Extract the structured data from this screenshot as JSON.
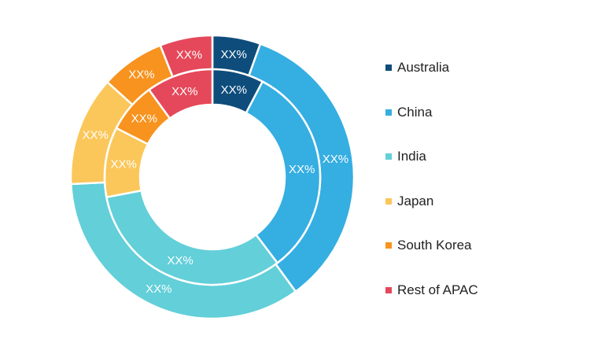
{
  "chart_data": {
    "type": "donut",
    "categories": [
      "Australia",
      "China",
      "India",
      "Japan",
      "South Korea",
      "Rest of APAC"
    ],
    "colors": [
      "#0e4d7b",
      "#35aee2",
      "#62cfd9",
      "#fbc75a",
      "#f7931e",
      "#e5485a"
    ],
    "series": [
      {
        "ring": "outer",
        "values": [
          5.5,
          34.5,
          34.2,
          12.5,
          7.3,
          6.0
        ],
        "labels": [
          "XX%",
          "XX%",
          "XX%",
          "XX%",
          "XX%",
          "XX%"
        ]
      },
      {
        "ring": "inner",
        "values": [
          7.7,
          32.0,
          32.3,
          10.5,
          7.5,
          10.0
        ],
        "labels": [
          "XX%",
          "XX%",
          "XX%",
          "XX%",
          "XX%",
          "XX%"
        ]
      }
    ],
    "legend": {
      "position": "right"
    }
  }
}
